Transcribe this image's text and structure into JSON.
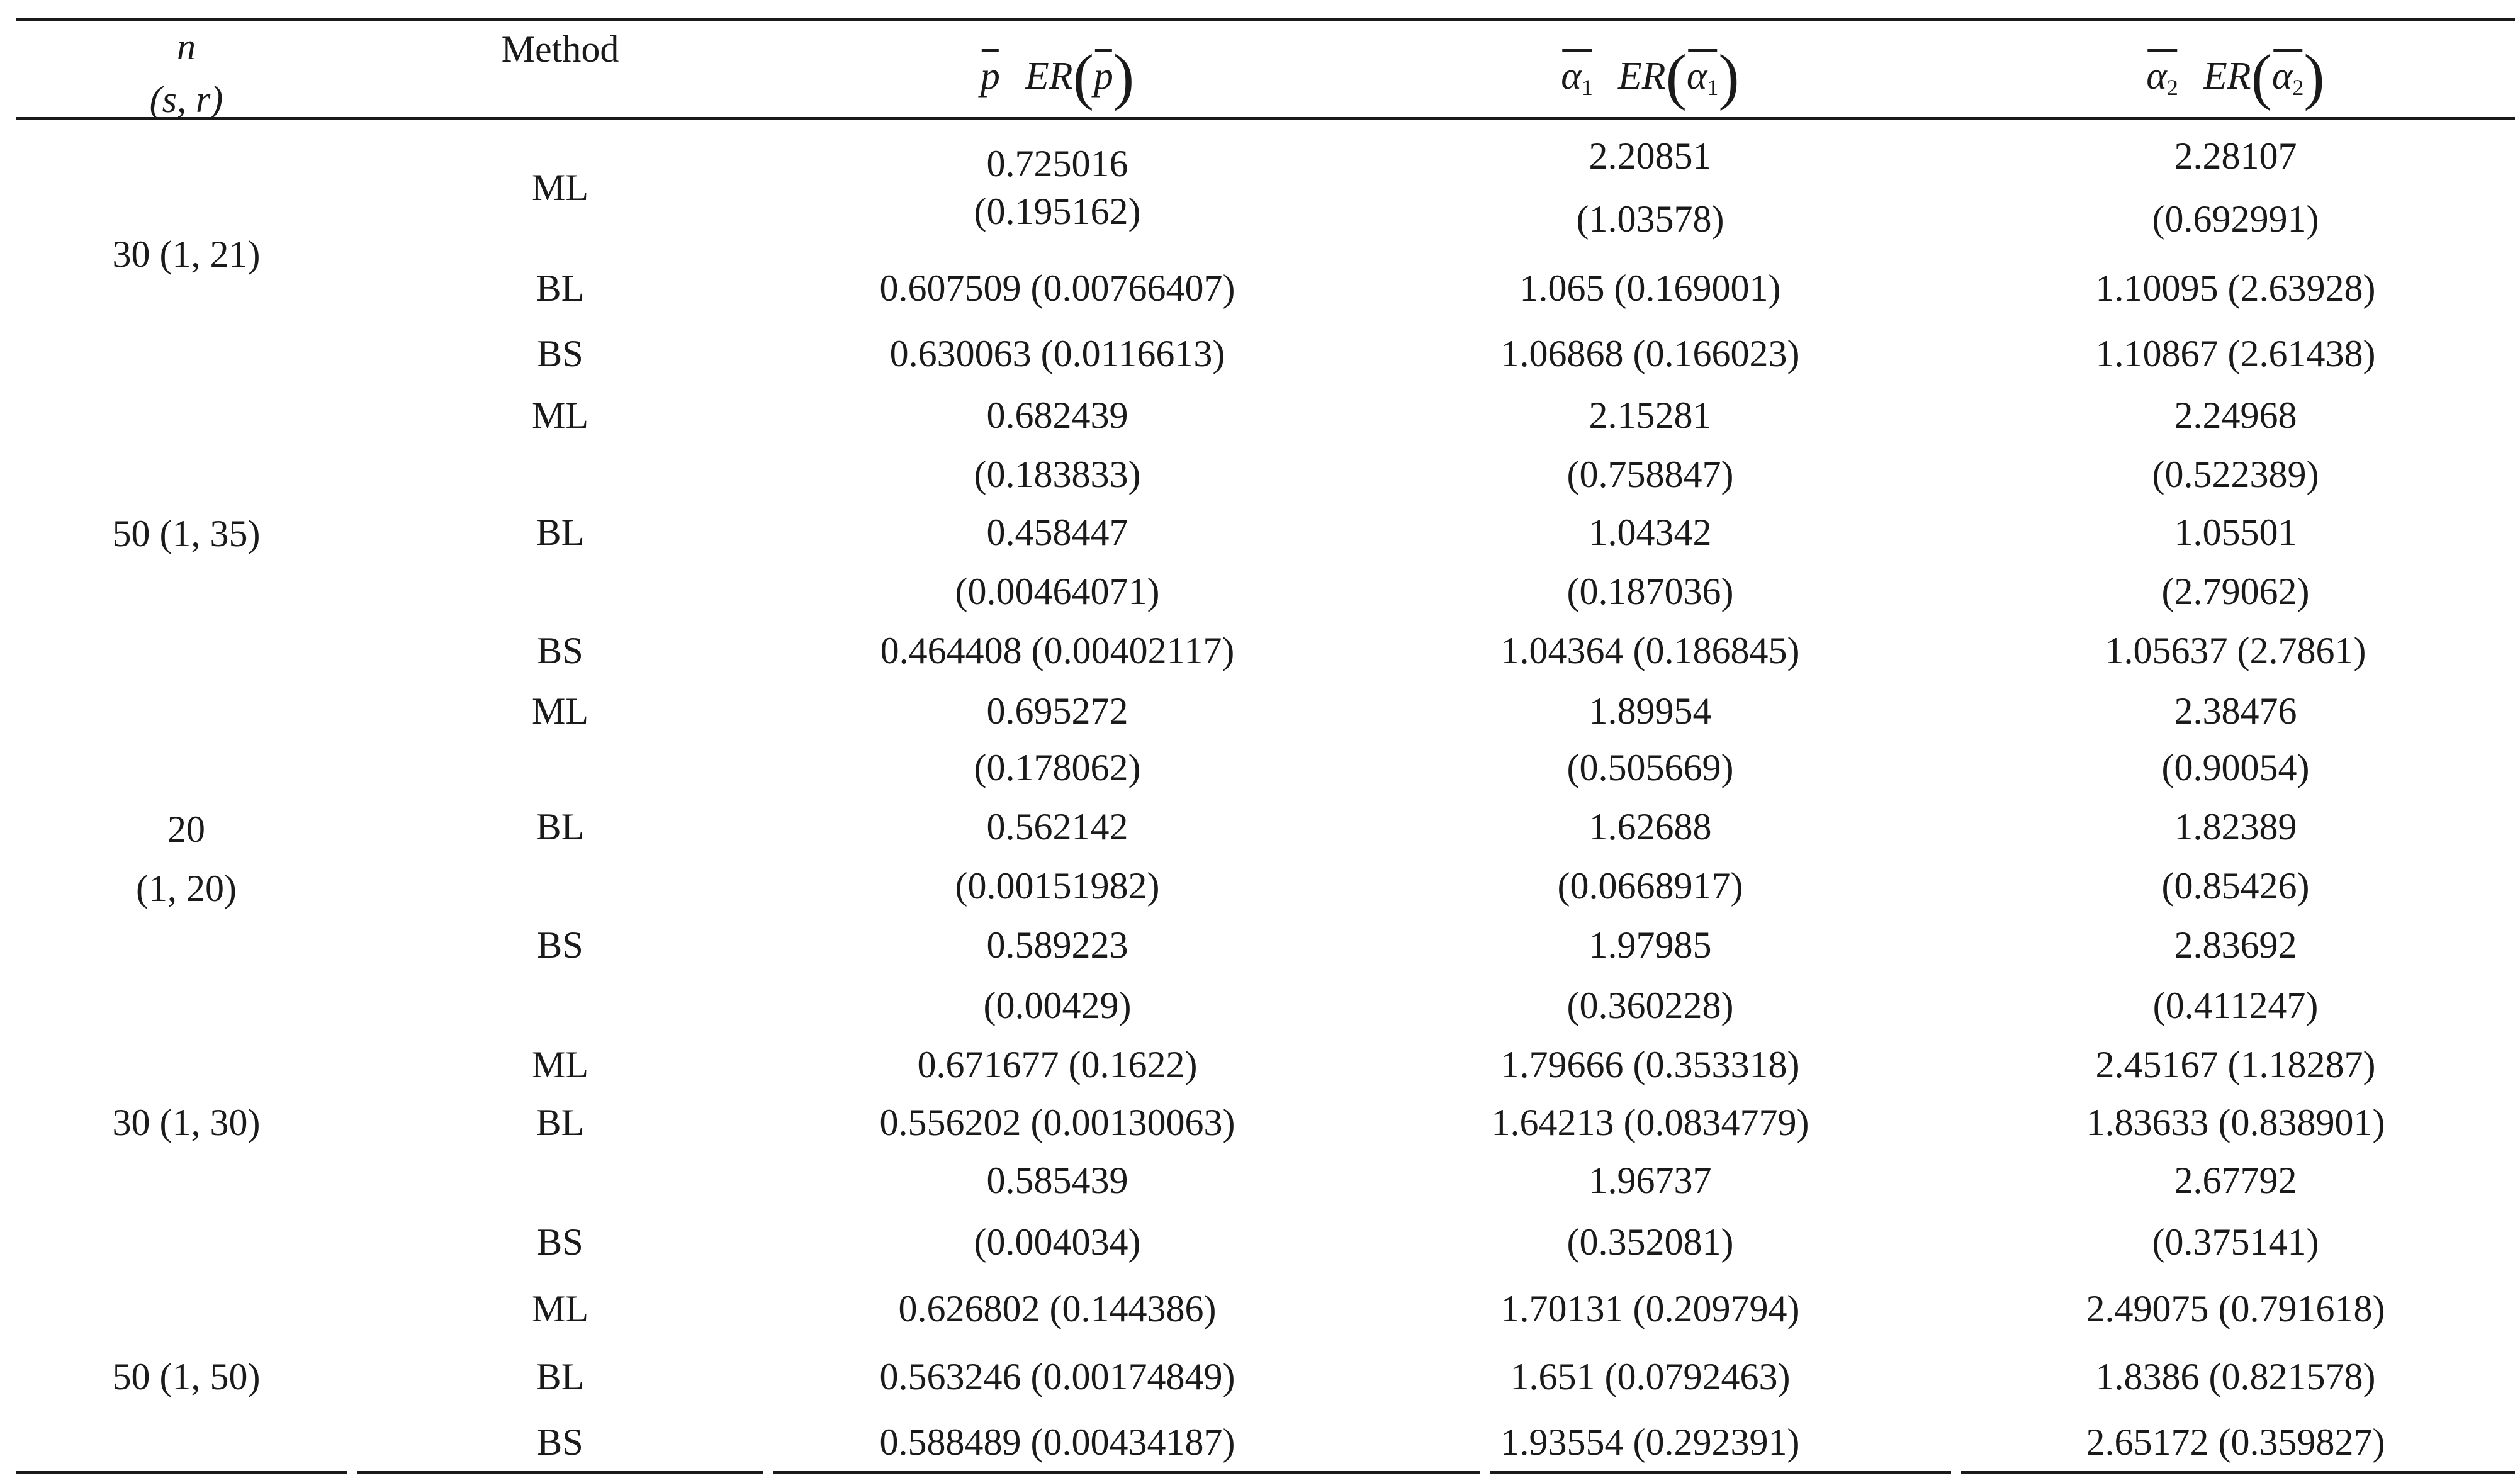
{
  "header": {
    "n_label": "n",
    "sr_label": "(s, r)",
    "method_label": "Method",
    "p_symbol": "p",
    "alpha1_symbol": "α",
    "alpha1_sub": "1",
    "alpha2_symbol": "α",
    "alpha2_sub": "2",
    "er_label": "ER"
  },
  "groups": [
    {
      "n_lines": [
        "30 (1, 21)"
      ]
    },
    {
      "n_lines": [
        "50 (1, 35)"
      ]
    },
    {
      "n_lines": [
        "20",
        "(1, 20)"
      ]
    },
    {
      "n_lines": [
        "30 (1, 30)"
      ]
    },
    {
      "n_lines": [
        "50 (1, 50)"
      ]
    }
  ],
  "cells": {
    "g1": {
      "ml": {
        "method": "ML",
        "p": [
          "0.725016",
          "(0.195162)"
        ],
        "a1": [
          "2.20851",
          "(1.03578)"
        ],
        "a2": [
          "2.28107",
          "(0.692991)"
        ]
      },
      "bl": {
        "method": "BL",
        "p": "0.607509 (0.00766407)",
        "a1": "1.065 (0.169001)",
        "a2": "1.10095 (2.63928)"
      },
      "bs": {
        "method": "BS",
        "p": "0.630063 (0.0116613)",
        "a1": "1.06868 (0.166023)",
        "a2": "1.10867 (2.61438)"
      }
    },
    "g2": {
      "ml": {
        "method": "ML",
        "p": [
          "0.682439",
          "(0.183833)"
        ],
        "a1": [
          "2.15281",
          "(0.758847)"
        ],
        "a2": [
          "2.24968",
          "(0.522389)"
        ]
      },
      "bl": {
        "method": "BL",
        "p": [
          "0.458447",
          "(0.00464071)"
        ],
        "a1": [
          "1.04342",
          "(0.187036)"
        ],
        "a2": [
          "1.05501",
          "(2.79062)"
        ]
      },
      "bs": {
        "method": "BS",
        "p": "0.464408 (0.00402117)",
        "a1": "1.04364 (0.186845)",
        "a2": "1.05637 (2.7861)"
      }
    },
    "g3": {
      "ml": {
        "method": "ML",
        "p": [
          "0.695272",
          "(0.178062)"
        ],
        "a1": [
          "1.89954",
          "(0.505669)"
        ],
        "a2": [
          "2.38476",
          "(0.90054)"
        ]
      },
      "bl": {
        "method": "BL",
        "p": [
          "0.562142",
          "(0.00151982)"
        ],
        "a1": [
          "1.62688",
          "(0.0668917)"
        ],
        "a2": [
          "1.82389",
          "(0.85426)"
        ]
      },
      "bs": {
        "method": "BS",
        "p": [
          "0.589223",
          "(0.00429)"
        ],
        "a1": [
          "1.97985",
          "(0.360228)"
        ],
        "a2": [
          "2.83692",
          "(0.411247)"
        ]
      }
    },
    "g4": {
      "ml": {
        "method": "ML",
        "p": "0.671677 (0.1622)",
        "a1": "1.79666 (0.353318)",
        "a2": "2.45167 (1.18287)"
      },
      "bl": {
        "method": "BL",
        "p": "0.556202 (0.00130063)",
        "a1": "1.64213 (0.0834779)",
        "a2": "1.83633 (0.838901)"
      },
      "bs": {
        "method": "BS",
        "p": [
          "0.585439",
          "(0.004034)"
        ],
        "a1": [
          "1.96737",
          "(0.352081)"
        ],
        "a2": [
          "2.67792",
          "(0.375141)"
        ]
      }
    },
    "g5": {
      "ml": {
        "method": "ML",
        "p": "0.626802 (0.144386)",
        "a1": "1.70131 (0.209794)",
        "a2": "2.49075 (0.791618)"
      },
      "bl": {
        "method": "BL",
        "p": "0.563246 (0.00174849)",
        "a1": "1.651 (0.0792463)",
        "a2": "1.8386 (0.821578)"
      },
      "bs": {
        "method": "BS",
        "p": "0.588489 (0.00434187)",
        "a1": "1.93554 (0.292391)",
        "a2": "2.65172 (0.359827)"
      }
    }
  }
}
